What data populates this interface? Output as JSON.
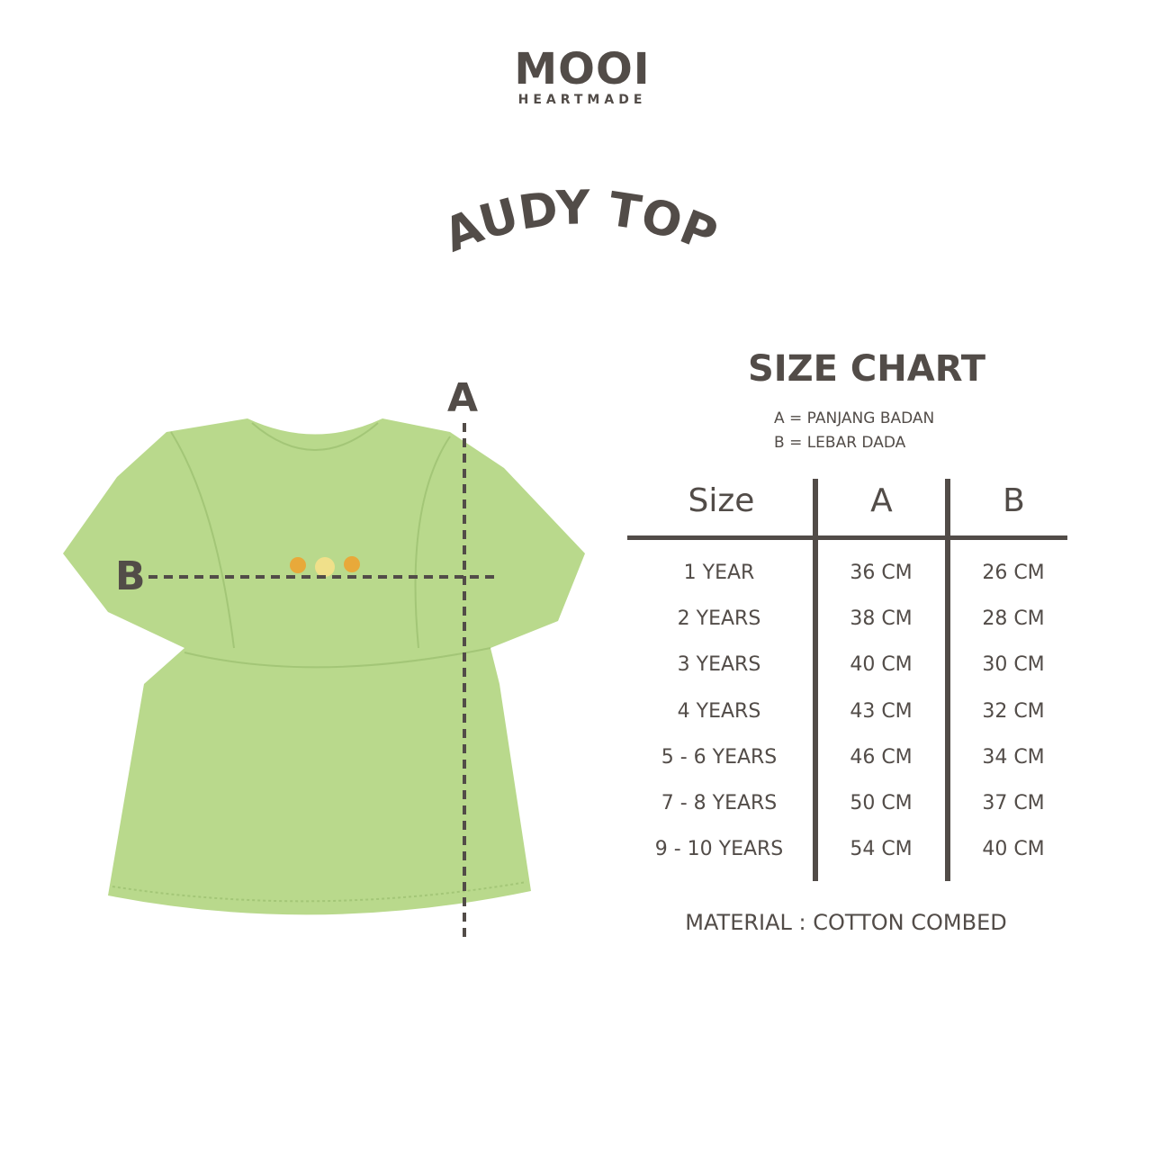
{
  "brand": {
    "name": "MOOI",
    "tagline": "HEARTMADE"
  },
  "product": {
    "title": "AUDY TOP",
    "image": "green-ruffle-top",
    "color": "#b9d98c"
  },
  "measure_labels": {
    "a": "A",
    "b": "B"
  },
  "size_chart": {
    "title": "SIZE CHART",
    "legend": [
      "A = PANJANG BADAN",
      "B = LEBAR DADA"
    ],
    "headers": [
      "Size",
      "A",
      "B"
    ],
    "rows": [
      [
        "1 YEAR",
        "36 CM",
        "26 CM"
      ],
      [
        "2 YEARS",
        "38 CM",
        "28 CM"
      ],
      [
        "3 YEARS",
        "40 CM",
        "30 CM"
      ],
      [
        "4 YEARS",
        "43 CM",
        "32 CM"
      ],
      [
        "5 - 6 YEARS",
        "46 CM",
        "34 CM"
      ],
      [
        "7 - 8 YEARS",
        "50 CM",
        "37 CM"
      ],
      [
        "9 - 10 YEARS",
        "54 CM",
        "40 CM"
      ]
    ],
    "material": "MATERIAL : COTTON COMBED"
  },
  "colors": {
    "text": "#524c48",
    "garment": "#b9d98c"
  }
}
